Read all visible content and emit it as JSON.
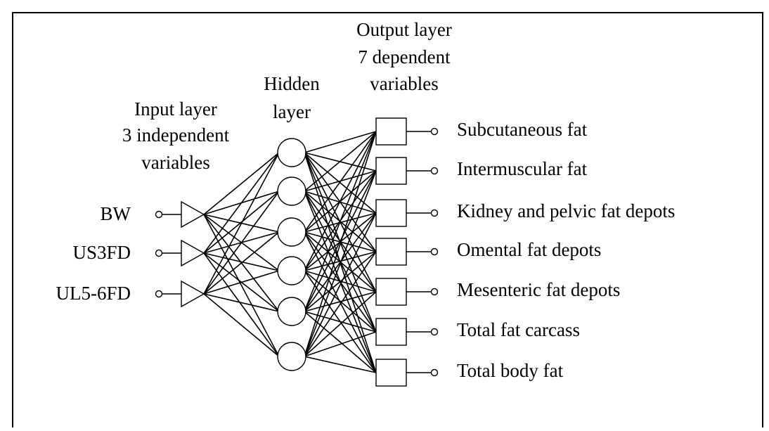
{
  "input_layer": {
    "title": [
      "Input layer",
      "3 independent",
      "variables"
    ],
    "nodes": [
      "BW",
      "US3FD",
      "UL5-6FD"
    ]
  },
  "hidden_layer": {
    "title": [
      "Hidden",
      "layer"
    ]
  },
  "output_layer": {
    "title": [
      "Output layer",
      "7 dependent",
      "variables"
    ],
    "nodes": [
      "Subcutaneous fat",
      "Intermuscular fat",
      "Kidney and pelvic fat depots",
      "Omental fat depots",
      "Mesenteric fat depots",
      "Total fat carcass",
      "Total body fat"
    ]
  }
}
